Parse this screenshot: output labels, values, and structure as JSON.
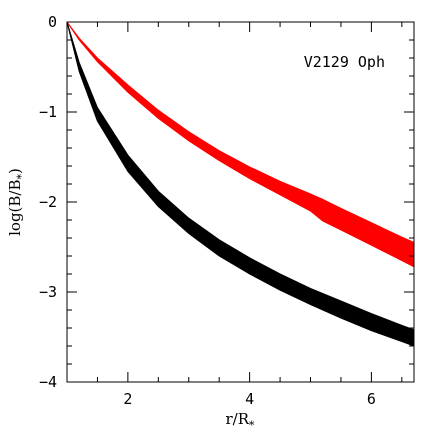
{
  "chart_data": {
    "type": "area",
    "annotation": "V2129 Oph",
    "xlabel": "r/R",
    "xlabel_sub": "*",
    "ylabel": "log(B/B",
    "ylabel_sub": "*",
    "ylabel_end": ")",
    "xlim": [
      1.0,
      6.7
    ],
    "ylim": [
      -4,
      0
    ],
    "x_major_ticks": [
      2,
      4,
      6
    ],
    "x_tick_labels": [
      "2",
      "4",
      "6"
    ],
    "y_major_ticks": [
      0,
      -1,
      -2,
      -3,
      -4
    ],
    "y_tick_labels": [
      "0",
      "−1",
      "−2",
      "−3",
      "−4"
    ],
    "grid": false,
    "series": [
      {
        "color": "#ff0000",
        "x": [
          1.0,
          1.2,
          1.5,
          2.0,
          2.5,
          3.0,
          3.5,
          4.0,
          4.5,
          5.0,
          5.2,
          5.5,
          6.0,
          6.5,
          6.7
        ],
        "upper": [
          0.0,
          -0.18,
          -0.4,
          -0.7,
          -0.98,
          -1.22,
          -1.43,
          -1.61,
          -1.77,
          -1.91,
          -1.97,
          -2.07,
          -2.23,
          -2.39,
          -2.45
        ],
        "lower": [
          0.0,
          -0.2,
          -0.44,
          -0.78,
          -1.07,
          -1.32,
          -1.54,
          -1.74,
          -1.92,
          -2.1,
          -2.21,
          -2.31,
          -2.48,
          -2.65,
          -2.72
        ]
      },
      {
        "color": "#000000",
        "x": [
          1.0,
          1.2,
          1.5,
          2.0,
          2.5,
          3.0,
          3.5,
          4.0,
          4.5,
          5.0,
          5.5,
          6.0,
          6.5,
          6.7
        ],
        "upper": [
          0.0,
          -0.45,
          -0.95,
          -1.48,
          -1.88,
          -2.18,
          -2.42,
          -2.62,
          -2.8,
          -2.96,
          -3.1,
          -3.24,
          -3.37,
          -3.42
        ],
        "lower": [
          0.0,
          -0.55,
          -1.1,
          -1.66,
          -2.05,
          -2.35,
          -2.6,
          -2.8,
          -2.98,
          -3.14,
          -3.29,
          -3.43,
          -3.55,
          -3.6
        ]
      }
    ]
  }
}
